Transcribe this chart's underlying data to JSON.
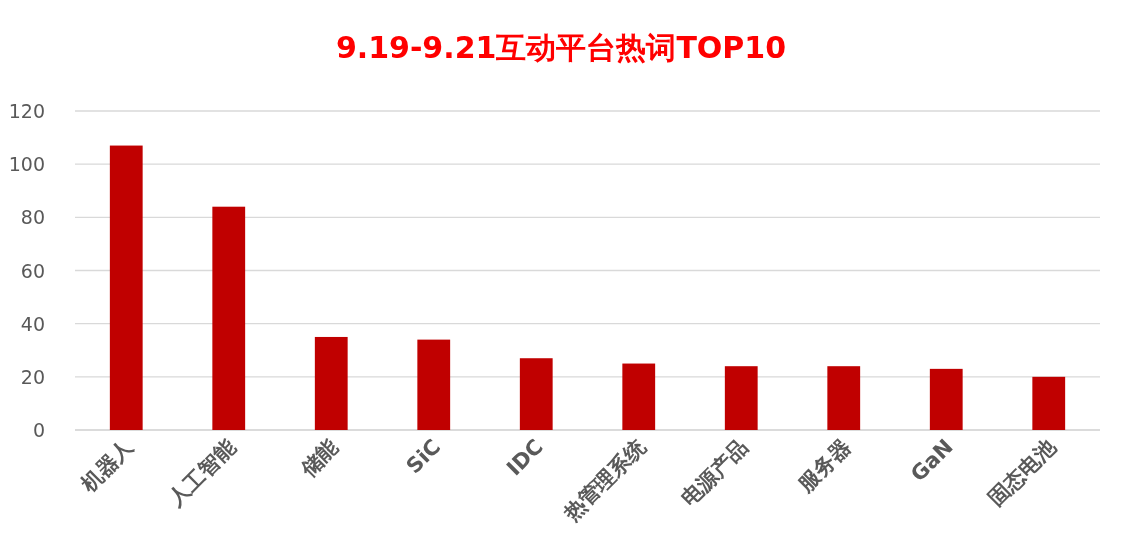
{
  "chart_data": {
    "type": "bar",
    "title": "9.19-9.21互动平台热词TOP10",
    "categories": [
      "机器人",
      "人工智能",
      "储能",
      "SiC",
      "IDC",
      "热管理系统",
      "电源产品",
      "服务器",
      "GaN",
      "固态电池"
    ],
    "values": [
      107,
      84,
      35,
      34,
      27,
      25,
      24,
      24,
      23,
      20
    ],
    "color": "#c00000",
    "ylim": [
      0,
      120
    ],
    "yticks": [
      0,
      20,
      40,
      60,
      80,
      100,
      120
    ],
    "grid": "y"
  }
}
